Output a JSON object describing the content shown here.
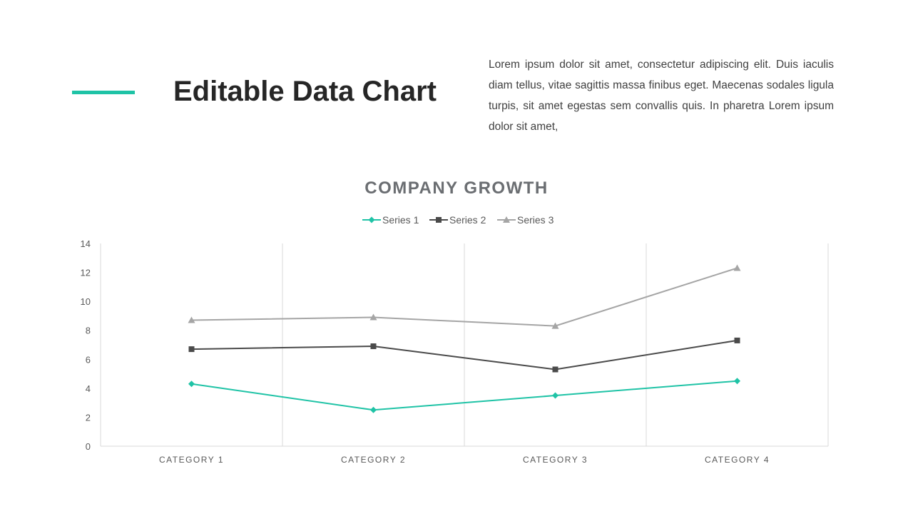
{
  "header": {
    "title": "Editable Data Chart",
    "body": "Lorem ipsum dolor sit amet, consectetur adipiscing elit. Duis iaculis diam tellus, vitae sagittis massa finibus eget. Maecenas sodales ligula turpis, sit amet egestas sem convallis quis. In pharetra  Lorem ipsum dolor sit amet,",
    "accent_color": "#1fc3a6"
  },
  "chart_data": {
    "type": "line",
    "title": "COMPANY GROWTH",
    "categories": [
      "CATEGORY 1",
      "CATEGORY 2",
      "CATEGORY 3",
      "CATEGORY 4"
    ],
    "series": [
      {
        "name": "Series 1",
        "values": [
          4.3,
          2.5,
          3.5,
          4.5
        ],
        "color": "#1fc3a6",
        "marker": "diamond"
      },
      {
        "name": "Series 2",
        "values": [
          6.7,
          6.9,
          5.3,
          7.3
        ],
        "color": "#4a4a4a",
        "marker": "square"
      },
      {
        "name": "Series 3",
        "values": [
          8.7,
          8.9,
          8.3,
          12.3
        ],
        "color": "#a5a5a5",
        "marker": "triangle"
      }
    ],
    "ylim": [
      0,
      14
    ],
    "yticks": [
      0,
      2,
      4,
      6,
      8,
      10,
      12,
      14
    ],
    "grid": "vertical",
    "legend": "top"
  }
}
